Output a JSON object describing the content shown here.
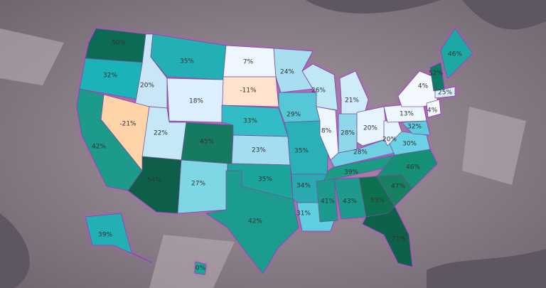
{
  "regions": [
    {
      "label": "50%"
    },
    {
      "label": "32%"
    },
    {
      "label": "20%"
    },
    {
      "label": "35%"
    },
    {
      "label": "7%"
    },
    {
      "label": "-11%"
    },
    {
      "label": "18%"
    },
    {
      "label": "-21%"
    },
    {
      "label": "42%"
    },
    {
      "label": "22%"
    },
    {
      "label": "45%"
    },
    {
      "label": "54%"
    },
    {
      "label": "27%"
    },
    {
      "label": "33%"
    },
    {
      "label": "23%"
    },
    {
      "label": "35%"
    },
    {
      "label": "42%"
    },
    {
      "label": "24%"
    },
    {
      "label": "29%"
    },
    {
      "label": "35%"
    },
    {
      "label": "34%"
    },
    {
      "label": "31%"
    },
    {
      "label": "26%"
    },
    {
      "label": "8%"
    },
    {
      "label": "21%"
    },
    {
      "label": "28%"
    },
    {
      "label": "20%"
    },
    {
      "label": "28%"
    },
    {
      "label": "39%"
    },
    {
      "label": "41%"
    },
    {
      "label": "43%"
    },
    {
      "label": "53%"
    },
    {
      "label": "71%"
    },
    {
      "label": "47%"
    },
    {
      "label": "46%"
    },
    {
      "label": "30%"
    },
    {
      "label": "20%"
    },
    {
      "label": "13%"
    },
    {
      "label": "32%"
    },
    {
      "label": "4%"
    },
    {
      "label": "52%"
    },
    {
      "label": "46%"
    },
    {
      "label": "25%"
    },
    {
      "label": "4%"
    },
    {
      "label": "39%"
    },
    {
      "label": "0%"
    }
  ]
}
